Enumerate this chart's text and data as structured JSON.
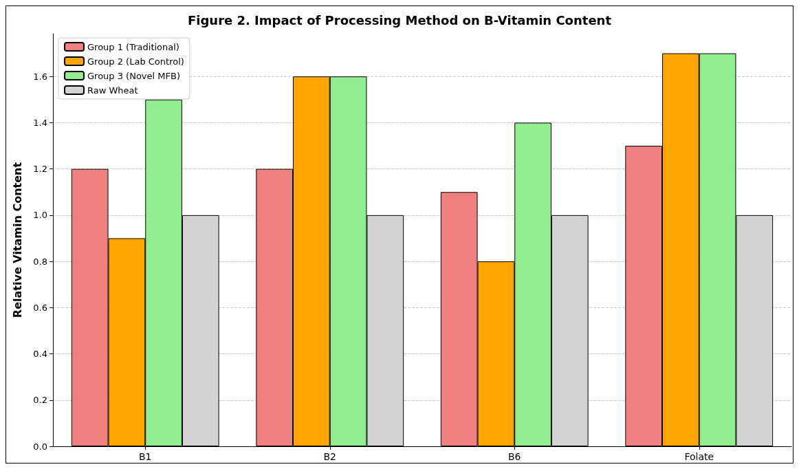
{
  "chart_data": {
    "type": "bar",
    "title": "Figure 2. Impact of Processing Method on B-Vitamin Content",
    "ylabel": "Relative Vitamin Content",
    "categories": [
      "B1",
      "B2",
      "B6",
      "Folate"
    ],
    "series": [
      {
        "name": "Group 1 (Traditional)",
        "color": "#f08080",
        "values": [
          1.2,
          1.2,
          1.1,
          1.3
        ]
      },
      {
        "name": "Group 2 (Lab Control)",
        "color": "#ffa500",
        "values": [
          0.9,
          1.6,
          0.8,
          1.7
        ]
      },
      {
        "name": "Group 3 (Novel MFB)",
        "color": "#90ee90",
        "values": [
          1.5,
          1.6,
          1.4,
          1.7
        ]
      },
      {
        "name": "Raw Wheat",
        "color": "#d3d3d3",
        "values": [
          1.0,
          1.0,
          1.0,
          1.0
        ]
      }
    ],
    "ylim": [
      0,
      1.785
    ],
    "yticks": [
      {
        "value": 0,
        "label": "0.0"
      },
      {
        "value": 0.2,
        "label": "0.2"
      },
      {
        "value": 0.4,
        "label": "0.4"
      },
      {
        "value": 0.6,
        "label": "0.6"
      },
      {
        "value": 0.8,
        "label": "0.8"
      },
      {
        "value": 1,
        "label": "1.0"
      },
      {
        "value": 1.2,
        "label": "1.2"
      },
      {
        "value": 1.4,
        "label": "1.4"
      },
      {
        "value": 1.6,
        "label": "1.6"
      }
    ],
    "grid": "y",
    "legend": "top left"
  }
}
